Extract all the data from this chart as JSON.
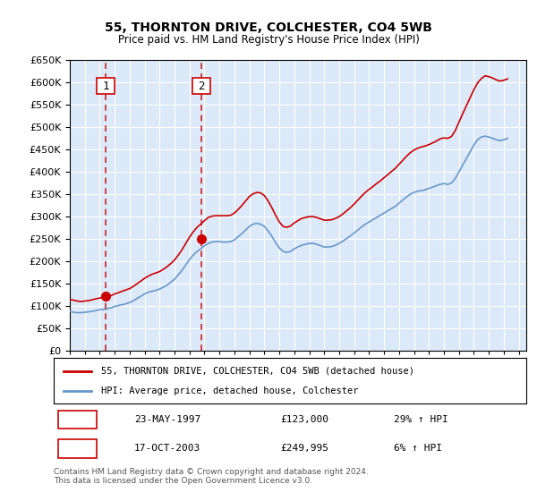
{
  "title": "55, THORNTON DRIVE, COLCHESTER, CO4 5WB",
  "subtitle": "Price paid vs. HM Land Registry's House Price Index (HPI)",
  "legend_line1": "55, THORNTON DRIVE, COLCHESTER, CO4 5WB (detached house)",
  "legend_line2": "HPI: Average price, detached house, Colchester",
  "footnote1": "Contains HM Land Registry data © Crown copyright and database right 2024.",
  "footnote2": "This data is licensed under the Open Government Licence v3.0.",
  "sale1_date": 1997.38,
  "sale1_price": 123000,
  "sale1_label": "1",
  "sale1_text": "23-MAY-1997",
  "sale1_pct": "29% ↑ HPI",
  "sale2_date": 2003.79,
  "sale2_price": 249995,
  "sale2_label": "2",
  "sale2_text": "17-OCT-2003",
  "sale2_pct": "6% ↑ HPI",
  "ylim": [
    0,
    650000
  ],
  "xlim": [
    1995,
    2025.5
  ],
  "bg_color": "#dce9f8",
  "plot_bg": "#dce9f8",
  "grid_color": "#ffffff",
  "red_color": "#cc0000",
  "blue_color": "#6699cc",
  "hpi_data_x": [
    1995.0,
    1995.25,
    1995.5,
    1995.75,
    1996.0,
    1996.25,
    1996.5,
    1996.75,
    1997.0,
    1997.25,
    1997.5,
    1997.75,
    1998.0,
    1998.25,
    1998.5,
    1998.75,
    1999.0,
    1999.25,
    1999.5,
    1999.75,
    2000.0,
    2000.25,
    2000.5,
    2000.75,
    2001.0,
    2001.25,
    2001.5,
    2001.75,
    2002.0,
    2002.25,
    2002.5,
    2002.75,
    2003.0,
    2003.25,
    2003.5,
    2003.75,
    2004.0,
    2004.25,
    2004.5,
    2004.75,
    2005.0,
    2005.25,
    2005.5,
    2005.75,
    2006.0,
    2006.25,
    2006.5,
    2006.75,
    2007.0,
    2007.25,
    2007.5,
    2007.75,
    2008.0,
    2008.25,
    2008.5,
    2008.75,
    2009.0,
    2009.25,
    2009.5,
    2009.75,
    2010.0,
    2010.25,
    2010.5,
    2010.75,
    2011.0,
    2011.25,
    2011.5,
    2011.75,
    2012.0,
    2012.25,
    2012.5,
    2012.75,
    2013.0,
    2013.25,
    2013.5,
    2013.75,
    2014.0,
    2014.25,
    2014.5,
    2014.75,
    2015.0,
    2015.25,
    2015.5,
    2015.75,
    2016.0,
    2016.25,
    2016.5,
    2016.75,
    2017.0,
    2017.25,
    2017.5,
    2017.75,
    2018.0,
    2018.25,
    2018.5,
    2018.75,
    2019.0,
    2019.25,
    2019.5,
    2019.75,
    2020.0,
    2020.25,
    2020.5,
    2020.75,
    2021.0,
    2021.25,
    2021.5,
    2021.75,
    2022.0,
    2022.25,
    2022.5,
    2022.75,
    2023.0,
    2023.25,
    2023.5,
    2023.75,
    2024.0,
    2024.25
  ],
  "hpi_data_y": [
    88000,
    86000,
    85000,
    85000,
    86000,
    87000,
    88000,
    90000,
    92000,
    92000,
    94000,
    96000,
    99000,
    101000,
    103000,
    105000,
    108000,
    112000,
    117000,
    122000,
    127000,
    131000,
    133000,
    135000,
    138000,
    142000,
    147000,
    153000,
    160000,
    170000,
    180000,
    192000,
    204000,
    214000,
    222000,
    228000,
    235000,
    240000,
    243000,
    244000,
    244000,
    243000,
    243000,
    244000,
    248000,
    255000,
    262000,
    270000,
    278000,
    283000,
    285000,
    283000,
    278000,
    268000,
    256000,
    242000,
    230000,
    222000,
    220000,
    222000,
    228000,
    232000,
    236000,
    238000,
    240000,
    240000,
    238000,
    235000,
    232000,
    232000,
    233000,
    236000,
    240000,
    245000,
    251000,
    257000,
    263000,
    270000,
    277000,
    283000,
    288000,
    293000,
    298000,
    303000,
    308000,
    313000,
    318000,
    323000,
    330000,
    337000,
    344000,
    350000,
    354000,
    357000,
    358000,
    360000,
    363000,
    366000,
    369000,
    372000,
    374000,
    372000,
    375000,
    385000,
    400000,
    415000,
    430000,
    445000,
    460000,
    472000,
    478000,
    480000,
    478000,
    475000,
    472000,
    470000,
    472000,
    475000
  ],
  "red_data_x": [
    1995.0,
    1995.25,
    1995.5,
    1995.75,
    1996.0,
    1996.25,
    1996.5,
    1996.75,
    1997.0,
    1997.25,
    1997.5,
    1997.75,
    1998.0,
    1998.25,
    1998.5,
    1998.75,
    1999.0,
    1999.25,
    1999.5,
    1999.75,
    2000.0,
    2000.25,
    2000.5,
    2000.75,
    2001.0,
    2001.25,
    2001.5,
    2001.75,
    2002.0,
    2002.25,
    2002.5,
    2002.75,
    2003.0,
    2003.25,
    2003.5,
    2003.75,
    2004.0,
    2004.25,
    2004.5,
    2004.75,
    2005.0,
    2005.25,
    2005.5,
    2005.75,
    2006.0,
    2006.25,
    2006.5,
    2006.75,
    2007.0,
    2007.25,
    2007.5,
    2007.75,
    2008.0,
    2008.25,
    2008.5,
    2008.75,
    2009.0,
    2009.25,
    2009.5,
    2009.75,
    2010.0,
    2010.25,
    2010.5,
    2010.75,
    2011.0,
    2011.25,
    2011.5,
    2011.75,
    2012.0,
    2012.25,
    2012.5,
    2012.75,
    2013.0,
    2013.25,
    2013.5,
    2013.75,
    2014.0,
    2014.25,
    2014.5,
    2014.75,
    2015.0,
    2015.25,
    2015.5,
    2015.75,
    2016.0,
    2016.25,
    2016.5,
    2016.75,
    2017.0,
    2017.25,
    2017.5,
    2017.75,
    2018.0,
    2018.25,
    2018.5,
    2018.75,
    2019.0,
    2019.25,
    2019.5,
    2019.75,
    2020.0,
    2020.25,
    2020.5,
    2020.75,
    2021.0,
    2021.25,
    2021.5,
    2021.75,
    2022.0,
    2022.25,
    2022.5,
    2022.75,
    2023.0,
    2023.25,
    2023.5,
    2023.75,
    2024.0,
    2024.25
  ],
  "red_data_y": [
    115000,
    113000,
    111000,
    110000,
    111000,
    112000,
    114000,
    116000,
    118000,
    119000,
    121000,
    123000,
    127000,
    130000,
    133000,
    136000,
    139000,
    144000,
    150000,
    156000,
    162000,
    167000,
    171000,
    174000,
    177000,
    182000,
    188000,
    195000,
    203000,
    214000,
    226000,
    240000,
    254000,
    266000,
    276000,
    283000,
    291000,
    298000,
    301000,
    302000,
    302000,
    302000,
    302000,
    303000,
    308000,
    316000,
    325000,
    335000,
    345000,
    351000,
    354000,
    353000,
    347000,
    335000,
    320000,
    303000,
    288000,
    278000,
    276000,
    279000,
    286000,
    291000,
    296000,
    298000,
    300000,
    300000,
    298000,
    295000,
    292000,
    292000,
    293000,
    296000,
    300000,
    306000,
    313000,
    320000,
    328000,
    337000,
    346000,
    354000,
    361000,
    367000,
    374000,
    380000,
    387000,
    394000,
    401000,
    408000,
    417000,
    426000,
    435000,
    443000,
    449000,
    453000,
    456000,
    458000,
    461000,
    465000,
    469000,
    474000,
    476000,
    475000,
    479000,
    492000,
    511000,
    530000,
    548000,
    566000,
    584000,
    599000,
    609000,
    615000,
    613000,
    610000,
    606000,
    603000,
    605000,
    608000
  ]
}
